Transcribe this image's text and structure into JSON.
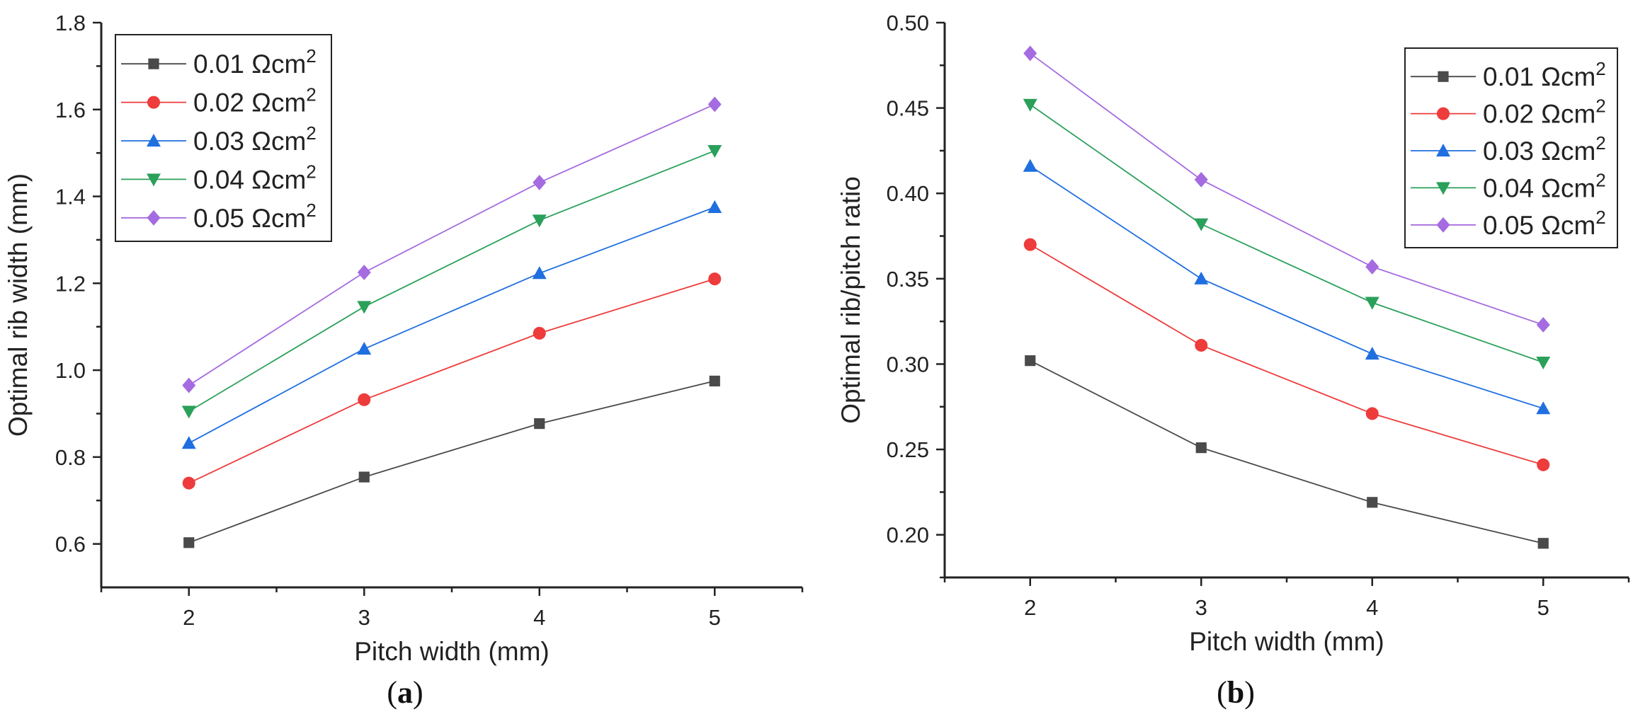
{
  "colors": {
    "series": [
      "#4a4a4a",
      "#ee3b3b",
      "#1f6fe0",
      "#2aa05a",
      "#a56be0"
    ],
    "axis": "#222222"
  },
  "legend_unit": "Ωcm",
  "legend_sup": "2",
  "chart_data": [
    {
      "type": "line",
      "panel_label": "(a)",
      "panel_label_letter": "a",
      "title": "",
      "xlabel": "Pitch width (mm)",
      "ylabel": "Optimal rib width (mm)",
      "xlim": [
        1.5,
        5.5
      ],
      "ylim": [
        0.5,
        1.8
      ],
      "xticks": [
        2,
        3,
        4,
        5
      ],
      "xtick_labels": [
        "2",
        "3",
        "4",
        "5"
      ],
      "yticks": [
        0.6,
        0.8,
        1.0,
        1.2,
        1.4,
        1.6,
        1.8
      ],
      "ytick_labels": [
        "0.6",
        "0.8",
        "1.0",
        "1.2",
        "1.4",
        "1.6",
        "1.8"
      ],
      "legend_position": "top-left",
      "x": [
        2,
        3,
        4,
        5
      ],
      "series": [
        {
          "name": "0.01 Ωcm2",
          "value_label": "0.01",
          "marker": "square",
          "values": [
            0.603,
            0.754,
            0.877,
            0.975
          ]
        },
        {
          "name": "0.02 Ωcm2",
          "value_label": "0.02",
          "marker": "circle",
          "values": [
            0.74,
            0.932,
            1.085,
            1.21
          ]
        },
        {
          "name": "0.03 Ωcm2",
          "value_label": "0.03",
          "marker": "triangle-up",
          "values": [
            0.832,
            1.049,
            1.223,
            1.375
          ]
        },
        {
          "name": "0.04 Ωcm2",
          "value_label": "0.04",
          "marker": "triangle-down",
          "values": [
            0.905,
            1.146,
            1.345,
            1.505
          ]
        },
        {
          "name": "0.05 Ωcm2",
          "value_label": "0.05",
          "marker": "diamond",
          "values": [
            0.965,
            1.225,
            1.432,
            1.612
          ]
        }
      ]
    },
    {
      "type": "line",
      "panel_label": "(b)",
      "panel_label_letter": "b",
      "title": "",
      "xlabel": "Pitch width (mm)",
      "ylabel": "Optimal rib/pitch ratio",
      "xlim": [
        1.5,
        5.5
      ],
      "ylim": [
        0.175,
        0.5
      ],
      "xticks": [
        2,
        3,
        4,
        5
      ],
      "xtick_labels": [
        "2",
        "3",
        "4",
        "5"
      ],
      "yticks": [
        0.2,
        0.25,
        0.3,
        0.35,
        0.4,
        0.45,
        0.5
      ],
      "ytick_labels": [
        "0.20",
        "0.25",
        "0.30",
        "0.35",
        "0.40",
        "0.45",
        "0.50"
      ],
      "legend_position": "top-right",
      "x": [
        2,
        3,
        4,
        5
      ],
      "series": [
        {
          "name": "0.01 Ωcm2",
          "value_label": "0.01",
          "marker": "square",
          "values": [
            0.302,
            0.251,
            0.219,
            0.195
          ]
        },
        {
          "name": "0.02 Ωcm2",
          "value_label": "0.02",
          "marker": "circle",
          "values": [
            0.37,
            0.311,
            0.271,
            0.241
          ]
        },
        {
          "name": "0.03 Ωcm2",
          "value_label": "0.03",
          "marker": "triangle-up",
          "values": [
            0.416,
            0.35,
            0.306,
            0.274
          ]
        },
        {
          "name": "0.04 Ωcm2",
          "value_label": "0.04",
          "marker": "triangle-down",
          "values": [
            0.452,
            0.382,
            0.336,
            0.301
          ]
        },
        {
          "name": "0.05 Ωcm2",
          "value_label": "0.05",
          "marker": "diamond",
          "values": [
            0.482,
            0.408,
            0.357,
            0.323
          ]
        }
      ]
    }
  ]
}
